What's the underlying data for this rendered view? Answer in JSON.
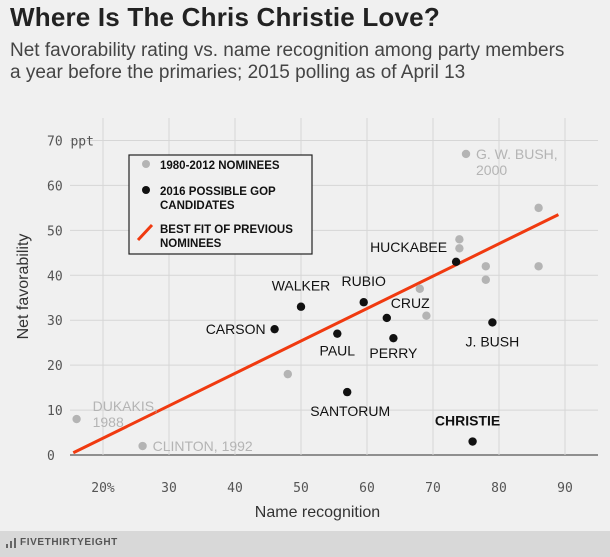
{
  "title": "Where Is The Chris Christie Love?",
  "subtitle_lines": [
    "Net favorability rating vs. name recognition among party members",
    "a year before the primaries; 2015 polling as of April 13"
  ],
  "brand": "FIVETHIRTYEIGHT",
  "chart_data": {
    "type": "scatter",
    "xlabel": "Name recognition",
    "ylabel": "Net favorability",
    "xlim": [
      15,
      95
    ],
    "ylim": [
      0,
      75
    ],
    "x_ticks": [
      20,
      30,
      40,
      50,
      60,
      70,
      80,
      90
    ],
    "x_tick_labels": [
      "20%",
      "30",
      "40",
      "50",
      "60",
      "70",
      "80",
      "90"
    ],
    "y_ticks": [
      0,
      10,
      20,
      30,
      40,
      50,
      60,
      70
    ],
    "y_tick_labels": [
      "0",
      "10",
      "20",
      "30",
      "40",
      "50",
      "60",
      "70 ppt"
    ],
    "grid": true,
    "legend": {
      "placement": "top-left",
      "items": [
        {
          "label": "1980-2012 NOMINEES",
          "marker": "dot",
          "color": "#b4b4b4"
        },
        {
          "label": "2016 POSSIBLE GOP CANDIDATES",
          "marker": "dot",
          "color": "#111111"
        },
        {
          "label": "BEST FIT OF PREVIOUS NOMINEES",
          "marker": "line",
          "color": "#f03a10"
        }
      ]
    },
    "series": [
      {
        "name": "1980-2012 NOMINEES",
        "color": "#b4b4b4",
        "points": [
          {
            "x": 16,
            "y": 8,
            "label": "DUKAKIS, 1988"
          },
          {
            "x": 26,
            "y": 2,
            "label": "CLINTON, 1992"
          },
          {
            "x": 48,
            "y": 18
          },
          {
            "x": 68,
            "y": 37
          },
          {
            "x": 69,
            "y": 31
          },
          {
            "x": 74,
            "y": 48
          },
          {
            "x": 74,
            "y": 46
          },
          {
            "x": 75,
            "y": 67,
            "label": "G. W. BUSH, 2000"
          },
          {
            "x": 78,
            "y": 42
          },
          {
            "x": 78,
            "y": 39
          },
          {
            "x": 86,
            "y": 55
          },
          {
            "x": 86,
            "y": 42
          }
        ]
      },
      {
        "name": "2016 POSSIBLE GOP CANDIDATES",
        "color": "#111111",
        "points": [
          {
            "x": 46,
            "y": 28,
            "label": "CARSON"
          },
          {
            "x": 50,
            "y": 33,
            "label": "WALKER"
          },
          {
            "x": 55.5,
            "y": 27,
            "label": "PAUL"
          },
          {
            "x": 57,
            "y": 14,
            "label": "SANTORUM"
          },
          {
            "x": 59.5,
            "y": 34,
            "label": "RUBIO"
          },
          {
            "x": 63,
            "y": 30.5,
            "label": "CRUZ"
          },
          {
            "x": 64,
            "y": 26,
            "label": "PERRY"
          },
          {
            "x": 73.5,
            "y": 43,
            "label": "HUCKABEE"
          },
          {
            "x": 76,
            "y": 3,
            "label": "CHRISTIE"
          },
          {
            "x": 79,
            "y": 29.5,
            "label": "J. BUSH"
          }
        ]
      }
    ],
    "fit_line": {
      "name": "BEST FIT OF PREVIOUS NOMINEES",
      "color": "#f03a10",
      "x": [
        15.5,
        89
      ],
      "y": [
        0.5,
        53.5
      ]
    }
  }
}
